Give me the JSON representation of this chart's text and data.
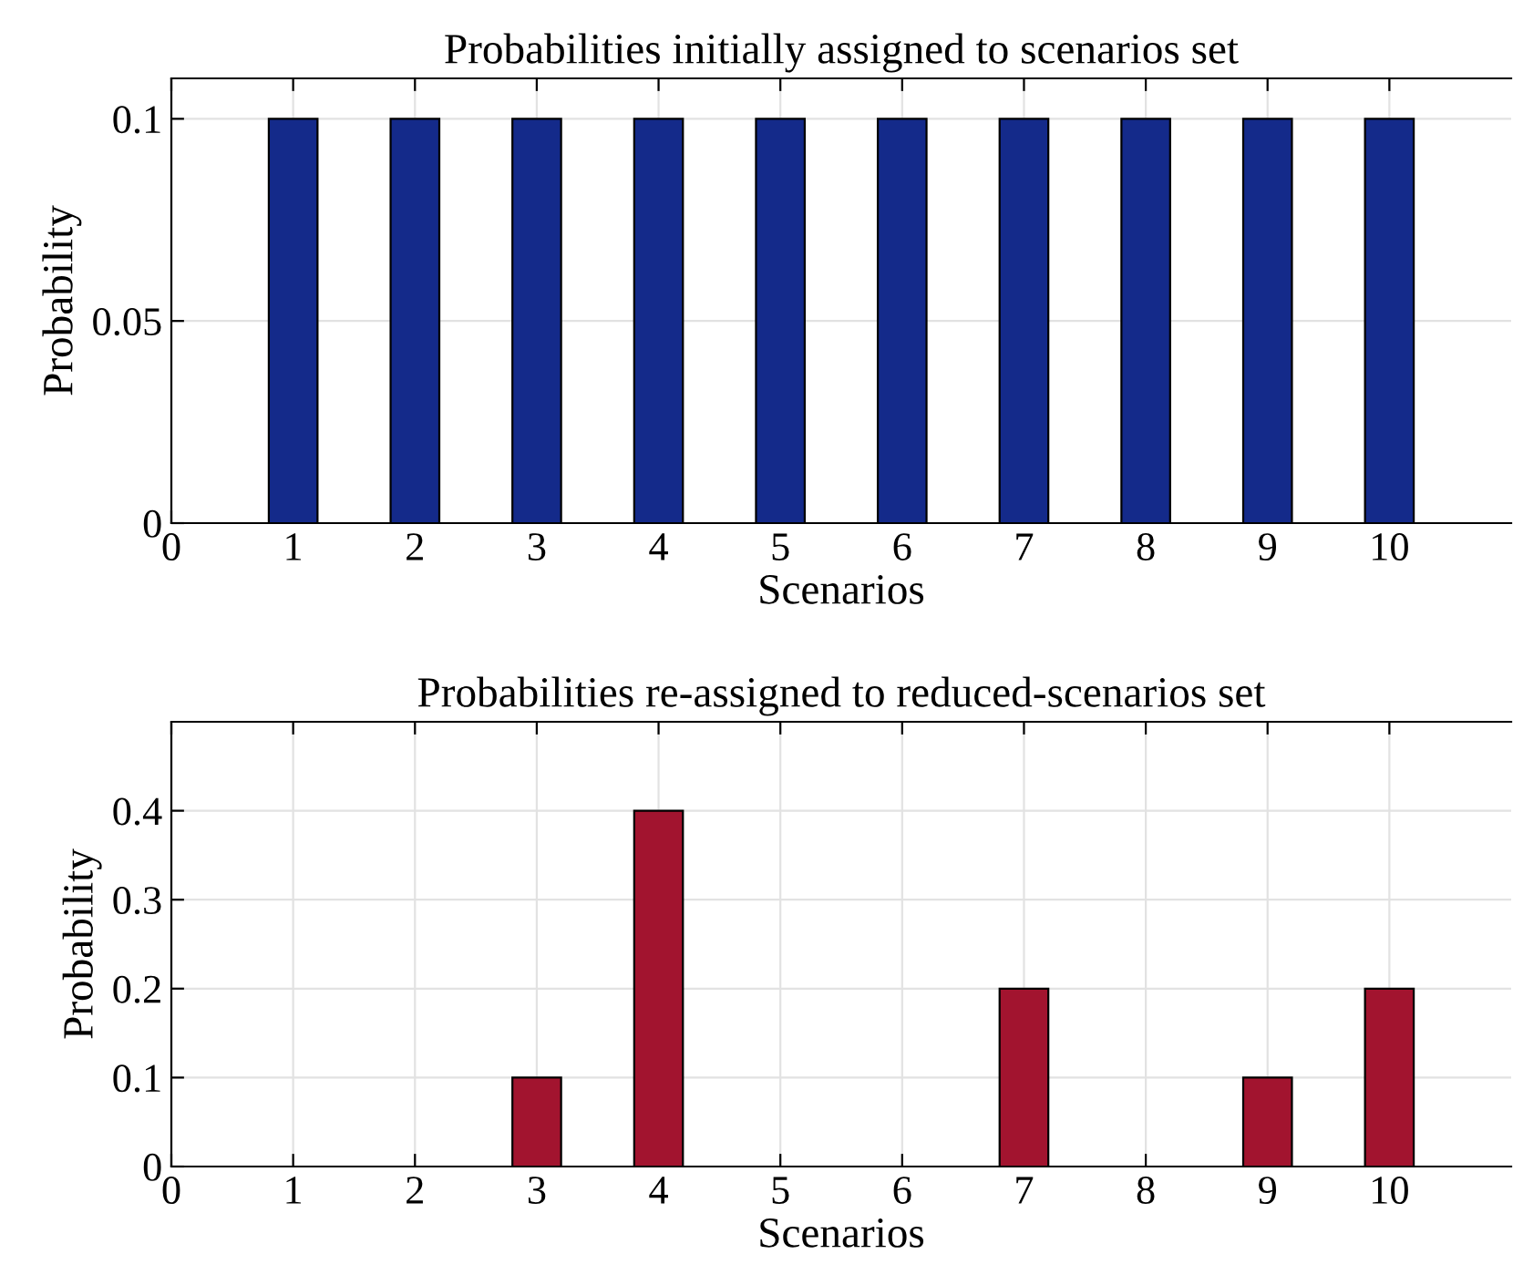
{
  "chart_data": [
    {
      "type": "bar",
      "title": "Probabilities initially assigned to scenarios set",
      "xlabel": "Scenarios",
      "ylabel": "Probability",
      "x": [
        1,
        2,
        3,
        4,
        5,
        6,
        7,
        8,
        9,
        10
      ],
      "values": [
        0.1,
        0.1,
        0.1,
        0.1,
        0.1,
        0.1,
        0.1,
        0.1,
        0.1,
        0.1
      ],
      "color": "#142a8a",
      "xlim": [
        0,
        11
      ],
      "xticks": [
        0,
        1,
        2,
        3,
        4,
        5,
        6,
        7,
        8,
        9,
        10
      ],
      "ylim": [
        0,
        0.11
      ],
      "yticks": [
        0,
        0.05,
        0.1
      ],
      "grid": true
    },
    {
      "type": "bar",
      "title": "Probabilities re-assigned to reduced-scenarios set",
      "xlabel": "Scenarios",
      "ylabel": "Probability",
      "x": [
        1,
        2,
        3,
        4,
        5,
        6,
        7,
        8,
        9,
        10
      ],
      "values": [
        0,
        0,
        0.1,
        0.4,
        0,
        0,
        0.2,
        0,
        0.1,
        0.2
      ],
      "color": "#a2142f",
      "xlim": [
        0,
        11
      ],
      "xticks": [
        0,
        1,
        2,
        3,
        4,
        5,
        6,
        7,
        8,
        9,
        10
      ],
      "ylim": [
        0,
        0.5
      ],
      "yticks": [
        0,
        0.1,
        0.2,
        0.3,
        0.4
      ],
      "grid": true
    }
  ]
}
